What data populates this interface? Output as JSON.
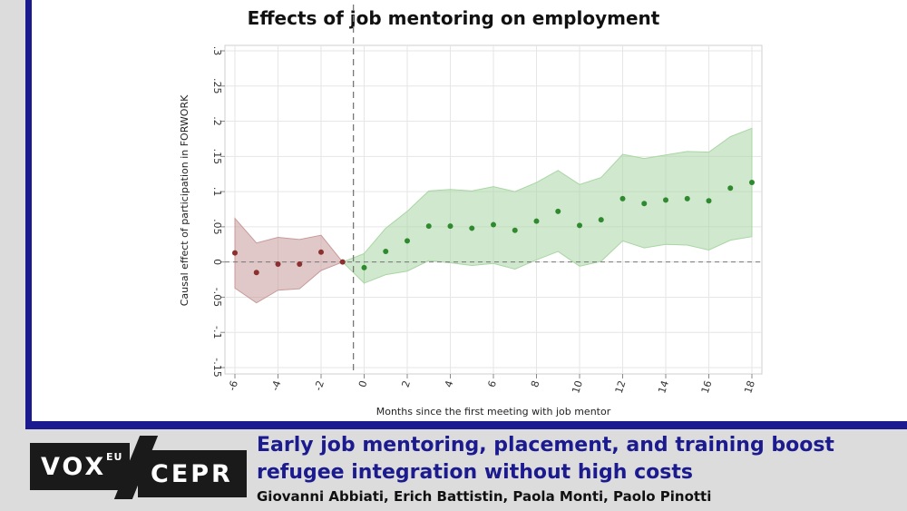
{
  "chart_data": {
    "type": "scatter",
    "title": "Effects of job mentoring on employment",
    "xlabel": "Months since the first meeting with job mentor",
    "ylabel": "Causal effect of participation in FORWORK",
    "xlim": [
      -6,
      18
    ],
    "ylim": [
      -0.15,
      0.3
    ],
    "x_ticks": [
      "-6",
      "-4",
      "-2",
      "0",
      "2",
      "4",
      "6",
      "8",
      "10",
      "12",
      "14",
      "16",
      "18"
    ],
    "y_ticks": [
      "-.15",
      "-.1",
      "-.05",
      "0",
      ".05",
      ".1",
      ".15",
      ".2",
      ".25",
      ".3"
    ],
    "grid": true,
    "reference_lines": {
      "vertical_x": -0.5,
      "horizontal_y": 0
    },
    "series": [
      {
        "color": "#8b2f2f",
        "band_color": "#c89a9a",
        "x": [
          -6,
          -5,
          -4,
          -3,
          -2,
          -1
        ],
        "y": [
          0.013,
          -0.015,
          -0.003,
          -0.003,
          0.014,
          0.0
        ],
        "ci_upper": [
          0.062,
          0.027,
          0.035,
          0.032,
          0.038,
          0.0
        ],
        "ci_lower": [
          -0.037,
          -0.058,
          -0.04,
          -0.038,
          -0.012,
          0.0
        ]
      },
      {
        "color": "#2f8a2f",
        "band_color": "#a9d6a4",
        "x": [
          0,
          1,
          2,
          3,
          4,
          5,
          6,
          7,
          8,
          9,
          10,
          11,
          12,
          13,
          14,
          15,
          16,
          17,
          18
        ],
        "y": [
          -0.008,
          0.015,
          0.03,
          0.051,
          0.051,
          0.048,
          0.053,
          0.045,
          0.058,
          0.072,
          0.052,
          0.06,
          0.09,
          0.083,
          0.088,
          0.09,
          0.087,
          0.105,
          0.113
        ],
        "ci_upper": [
          0.012,
          0.048,
          0.072,
          0.101,
          0.103,
          0.101,
          0.107,
          0.1,
          0.113,
          0.13,
          0.11,
          0.12,
          0.153,
          0.147,
          0.152,
          0.157,
          0.156,
          0.178,
          0.19
        ],
        "ci_lower": [
          -0.03,
          -0.018,
          -0.013,
          0.002,
          -0.001,
          -0.005,
          -0.002,
          -0.01,
          0.003,
          0.015,
          -0.006,
          0.001,
          0.03,
          0.02,
          0.025,
          0.024,
          0.017,
          0.031,
          0.036
        ]
      }
    ]
  },
  "footer": {
    "logo_vox": "VOX",
    "logo_vox_sup": "EU",
    "logo_cepr": "CEPR",
    "headline": "Early job mentoring, placement, and training boost refugee integration without high costs",
    "authors": "Giovanni Abbiati, Erich Battistin, Paola Monti, Paolo Pinotti"
  },
  "colors": {
    "frame": "#1b1b8f",
    "headline": "#1b1b8f",
    "logo_bg": "#1a1a1a"
  }
}
